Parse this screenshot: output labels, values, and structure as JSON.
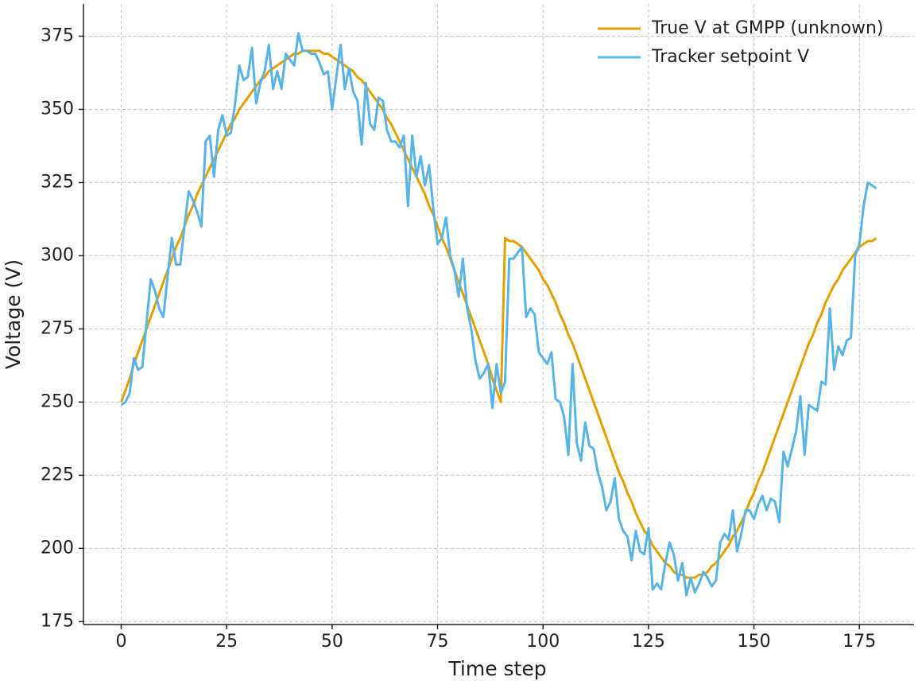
{
  "chart_data": {
    "type": "line",
    "xlabel": "Time step",
    "ylabel": "Voltage (V)",
    "x": [
      0,
      1,
      2,
      3,
      4,
      5,
      6,
      7,
      8,
      9,
      10,
      11,
      12,
      13,
      14,
      15,
      16,
      17,
      18,
      19,
      20,
      21,
      22,
      23,
      24,
      25,
      26,
      27,
      28,
      29,
      30,
      31,
      32,
      33,
      34,
      35,
      36,
      37,
      38,
      39,
      40,
      41,
      42,
      43,
      44,
      45,
      46,
      47,
      48,
      49,
      50,
      51,
      52,
      53,
      54,
      55,
      56,
      57,
      58,
      59,
      60,
      61,
      62,
      63,
      64,
      65,
      66,
      67,
      68,
      69,
      70,
      71,
      72,
      73,
      74,
      75,
      76,
      77,
      78,
      79,
      80,
      81,
      82,
      83,
      84,
      85,
      86,
      87,
      88,
      89,
      90,
      91,
      92,
      93,
      94,
      95,
      96,
      97,
      98,
      99,
      100,
      101,
      102,
      103,
      104,
      105,
      106,
      107,
      108,
      109,
      110,
      111,
      112,
      113,
      114,
      115,
      116,
      117,
      118,
      119,
      120,
      121,
      122,
      123,
      124,
      125,
      126,
      127,
      128,
      129,
      130,
      131,
      132,
      133,
      134,
      135,
      136,
      137,
      138,
      139,
      140,
      141,
      142,
      143,
      144,
      145,
      146,
      147,
      148,
      149,
      150,
      151,
      152,
      153,
      154,
      155,
      156,
      157,
      158,
      159,
      160,
      161,
      162,
      163,
      164,
      165,
      166,
      167,
      168,
      169,
      170,
      171,
      172,
      173,
      174,
      175,
      176,
      177,
      178,
      179
    ],
    "series": [
      {
        "name": "True V at GMPP (unknown)",
        "color": "#e69f00",
        "values": [
          250,
          254,
          258,
          263,
          267,
          271,
          275,
          279,
          283,
          287,
          291,
          295,
          299,
          303,
          306,
          310,
          314,
          317,
          321,
          324,
          327,
          330,
          333,
          336,
          339,
          342,
          345,
          347,
          350,
          352,
          354,
          356,
          358,
          360,
          361,
          363,
          364,
          365,
          366,
          367,
          368,
          369,
          369,
          370,
          370,
          370,
          370,
          370,
          369,
          369,
          368,
          367,
          366,
          365,
          364,
          363,
          361,
          360,
          358,
          356,
          354,
          352,
          350,
          347,
          345,
          342,
          339,
          336,
          333,
          330,
          327,
          324,
          321,
          317,
          314,
          310,
          306,
          303,
          299,
          295,
          291,
          287,
          283,
          279,
          275,
          271,
          267,
          263,
          258,
          254,
          250,
          306,
          305,
          305,
          304,
          303,
          301,
          299,
          297,
          295,
          292,
          290,
          287,
          284,
          280,
          277,
          273,
          270,
          266,
          262,
          258,
          254,
          250,
          246,
          242,
          238,
          234,
          230,
          226,
          223,
          219,
          216,
          212,
          209,
          206,
          204,
          201,
          199,
          197,
          195,
          194,
          192,
          191,
          191,
          190,
          190,
          190,
          191,
          191,
          192,
          194,
          195,
          197,
          199,
          201,
          204,
          206,
          209,
          212,
          216,
          219,
          223,
          226,
          230,
          234,
          238,
          242,
          246,
          250,
          254,
          258,
          262,
          266,
          270,
          273,
          277,
          280,
          284,
          287,
          290,
          292,
          295,
          297,
          299,
          301,
          303,
          304,
          305,
          305,
          306
        ]
      },
      {
        "name": "Tracker setpoint V",
        "color": "#56b4e9",
        "values": [
          249,
          250,
          253,
          265,
          261,
          262,
          277,
          292,
          288,
          282,
          279,
          293,
          306,
          297,
          297,
          310,
          322,
          319,
          315,
          310,
          339,
          341,
          327,
          343,
          348,
          341,
          342,
          352,
          365,
          360,
          361,
          371,
          352,
          359,
          363,
          372,
          357,
          363,
          357,
          369,
          367,
          365,
          376,
          370,
          370,
          369,
          369,
          366,
          362,
          363,
          350,
          361,
          372,
          357,
          364,
          356,
          353,
          338,
          359,
          345,
          343,
          354,
          353,
          343,
          339,
          339,
          337,
          341,
          317,
          341,
          327,
          334,
          324,
          331,
          316,
          304,
          306,
          313,
          300,
          295,
          286,
          299,
          282,
          275,
          264,
          258,
          260,
          263,
          248,
          263,
          253,
          257,
          299,
          299,
          301,
          303,
          279,
          282,
          280,
          267,
          265,
          263,
          267,
          251,
          250,
          245,
          232,
          263,
          236,
          230,
          243,
          235,
          234,
          226,
          221,
          213,
          216,
          224,
          210,
          206,
          204,
          196,
          206,
          199,
          198,
          207,
          186,
          188,
          186,
          195,
          202,
          198,
          189,
          195,
          184,
          190,
          185,
          188,
          192,
          190,
          187,
          189,
          202,
          205,
          203,
          213,
          199,
          205,
          213,
          213,
          210,
          215,
          218,
          213,
          217,
          216,
          209,
          233,
          228,
          234,
          240,
          252,
          232,
          249,
          248,
          247,
          257,
          256,
          282,
          261,
          269,
          266,
          271,
          272,
          300,
          304,
          317,
          325,
          324,
          323
        ]
      }
    ],
    "xlim": [
      -8.95,
      187.95
    ],
    "xticks": [
      0,
      25,
      50,
      75,
      100,
      125,
      150,
      175
    ],
    "ylim": [
      174,
      386
    ],
    "yticks": [
      175,
      200,
      225,
      250,
      275,
      300,
      325,
      350,
      375
    ],
    "grid": true,
    "legend": "upper right"
  }
}
